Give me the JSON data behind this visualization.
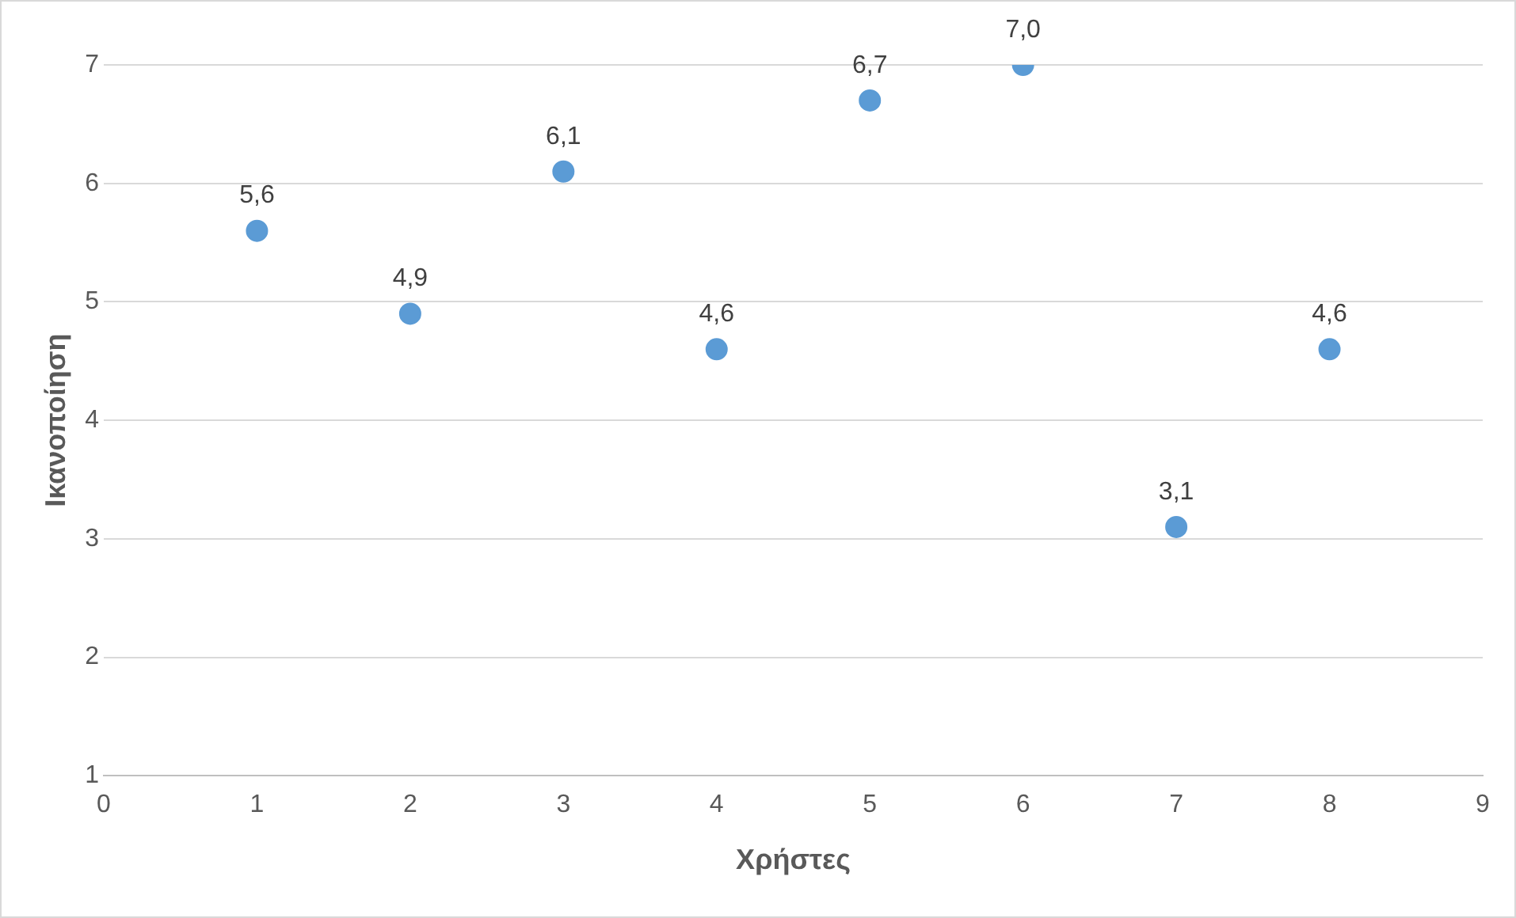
{
  "chart_data": {
    "type": "scatter",
    "xlabel": "Χρήστες",
    "ylabel": "Ικανοποίηση",
    "x": [
      1,
      2,
      3,
      4,
      5,
      6,
      7,
      8
    ],
    "series": [
      {
        "color": "#5b9bd5",
        "values": [
          5.6,
          4.9,
          6.1,
          4.6,
          6.7,
          7.0,
          3.1,
          4.6
        ],
        "value_labels": [
          "5,6",
          "4,9",
          "6,1",
          "4,6",
          "6,7",
          "7,0",
          "3,1",
          "4,6"
        ]
      }
    ],
    "xlim": [
      0,
      9
    ],
    "xticks": [
      0,
      1,
      2,
      3,
      4,
      5,
      6,
      7,
      8,
      9
    ],
    "ylim": [
      1,
      7
    ],
    "yticks": [
      1,
      2,
      3,
      4,
      5,
      6,
      7
    ],
    "grid": "y",
    "marker": "circle",
    "legend": false
  }
}
